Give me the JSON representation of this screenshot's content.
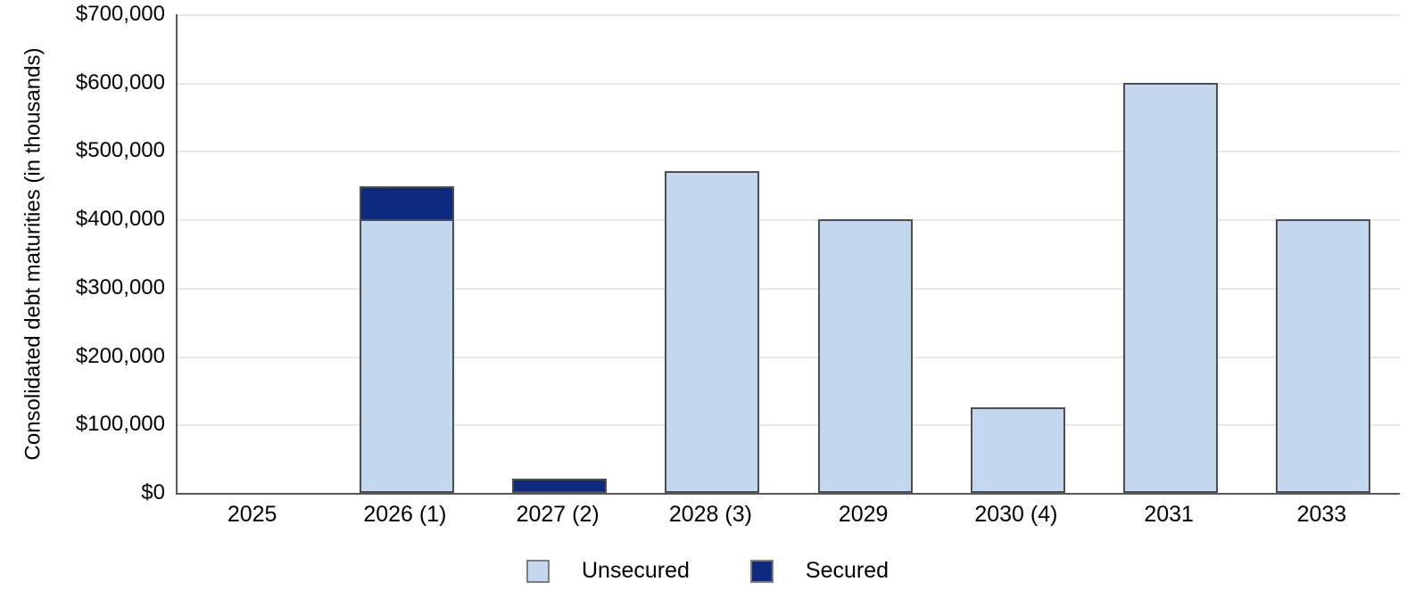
{
  "chart_data": {
    "type": "bar",
    "stacked": true,
    "title": "",
    "xlabel": "",
    "ylabel": "Consolidated debt maturities (in thousands)",
    "categories": [
      "2025",
      "2026 (1)",
      "2027 (2)",
      "2028 (3)",
      "2029",
      "2030 (4)",
      "2031",
      "2033"
    ],
    "series": [
      {
        "name": "Unsecured",
        "color": "#c3d8ee",
        "values": [
          0,
          400000,
          0,
          470000,
          400000,
          125000,
          600000,
          400000
        ]
      },
      {
        "name": "Secured",
        "color": "#0e2a7e",
        "values": [
          0,
          48000,
          21000,
          0,
          0,
          0,
          0,
          0
        ]
      }
    ],
    "ylim": [
      0,
      700000
    ],
    "y_tick_values": [
      0,
      100000,
      200000,
      300000,
      400000,
      500000,
      600000,
      700000
    ],
    "y_tick_labels": [
      "$0",
      "$100,000",
      "$200,000",
      "$300,000",
      "$400,000",
      "$500,000",
      "$600,000",
      "$700,000"
    ],
    "grid": "horizontal",
    "legend_position": "bottom",
    "colors": {
      "axis_line": "#595959",
      "gridline": "#e7e7e7",
      "bar_border": "#4a4f54",
      "legend_swatch_border": "#7f7f7f",
      "text": "#000000"
    }
  }
}
